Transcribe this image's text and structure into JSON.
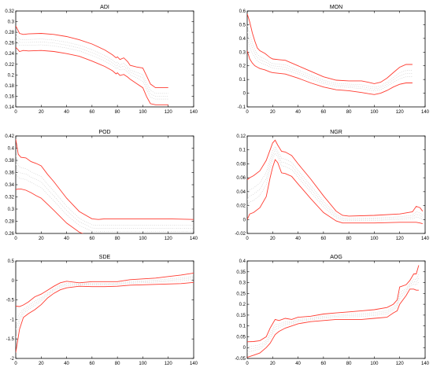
{
  "chart_data": [
    {
      "type": "line",
      "title": "ADI",
      "xlim": [
        0,
        140
      ],
      "ylim": [
        0.14,
        0.32
      ],
      "xticks": [
        0,
        20,
        40,
        60,
        80,
        100,
        120,
        140
      ],
      "yticks": [
        0.14,
        0.16,
        0.18,
        0.2,
        0.22,
        0.24,
        0.26,
        0.28,
        0.3,
        0.32
      ],
      "ytick_labels": [
        "0.14",
        "0.16",
        "0.18",
        "0.2",
        "0.22",
        "0.24",
        "0.26",
        "0.28",
        "0.3",
        "0.32"
      ],
      "xtick_labels": [
        "0",
        "20",
        "40",
        "60",
        "80",
        "100",
        "120",
        "140"
      ],
      "series": [
        {
          "role": "upper",
          "x": [
            0,
            3,
            6,
            10,
            20,
            30,
            40,
            50,
            60,
            70,
            76,
            79,
            80,
            82,
            85,
            88,
            90,
            95,
            100,
            103,
            106,
            110,
            115,
            120
          ],
          "y": [
            0.292,
            0.278,
            0.276,
            0.277,
            0.278,
            0.276,
            0.272,
            0.266,
            0.258,
            0.247,
            0.238,
            0.232,
            0.234,
            0.229,
            0.232,
            0.225,
            0.218,
            0.215,
            0.213,
            0.198,
            0.183,
            0.176,
            0.176,
            0.176
          ]
        },
        {
          "role": "lower",
          "x": [
            0,
            3,
            6,
            10,
            20,
            30,
            40,
            50,
            60,
            70,
            76,
            79,
            80,
            82,
            85,
            88,
            90,
            95,
            100,
            103,
            106,
            110,
            115,
            120
          ],
          "y": [
            0.252,
            0.244,
            0.246,
            0.245,
            0.246,
            0.244,
            0.24,
            0.235,
            0.226,
            0.216,
            0.208,
            0.202,
            0.204,
            0.199,
            0.201,
            0.196,
            0.192,
            0.184,
            0.176,
            0.159,
            0.146,
            0.144,
            0.144,
            0.144
          ]
        }
      ]
    },
    {
      "type": "line",
      "title": "MON",
      "xlim": [
        0,
        140
      ],
      "ylim": [
        -0.1,
        0.6
      ],
      "xticks": [
        0,
        20,
        40,
        60,
        80,
        100,
        120,
        140
      ],
      "yticks": [
        -0.1,
        0,
        0.1,
        0.2,
        0.3,
        0.4,
        0.5,
        0.6
      ],
      "ytick_labels": [
        "-0.1",
        "0",
        "0.1",
        "0.2",
        "0.3",
        "0.4",
        "0.5",
        "0.6"
      ],
      "xtick_labels": [
        "0",
        "20",
        "40",
        "60",
        "80",
        "100",
        "120",
        "140"
      ],
      "series": [
        {
          "role": "upper",
          "x": [
            0,
            2,
            4,
            6,
            8,
            10,
            14,
            18,
            20,
            25,
            30,
            40,
            50,
            60,
            70,
            80,
            90,
            95,
            100,
            105,
            110,
            115,
            120,
            125,
            130
          ],
          "y": [
            0.58,
            0.52,
            0.44,
            0.38,
            0.33,
            0.31,
            0.29,
            0.26,
            0.25,
            0.245,
            0.24,
            0.2,
            0.16,
            0.12,
            0.095,
            0.09,
            0.09,
            0.08,
            0.07,
            0.08,
            0.11,
            0.15,
            0.19,
            0.21,
            0.21
          ]
        },
        {
          "role": "lower",
          "x": [
            0,
            2,
            4,
            6,
            8,
            10,
            14,
            18,
            20,
            25,
            30,
            40,
            50,
            60,
            70,
            80,
            90,
            95,
            100,
            105,
            110,
            115,
            120,
            125,
            130
          ],
          "y": [
            0.31,
            0.25,
            0.22,
            0.2,
            0.19,
            0.18,
            0.17,
            0.155,
            0.15,
            0.145,
            0.14,
            0.11,
            0.075,
            0.045,
            0.025,
            0.018,
            0.005,
            -0.003,
            -0.01,
            0.0,
            0.02,
            0.045,
            0.065,
            0.075,
            0.075
          ]
        }
      ]
    },
    {
      "type": "line",
      "title": "POD",
      "xlim": [
        0,
        140
      ],
      "ylim": [
        0.26,
        0.42
      ],
      "xticks": [
        0,
        20,
        40,
        60,
        80,
        100,
        120,
        140
      ],
      "yticks": [
        0.26,
        0.28,
        0.3,
        0.32,
        0.34,
        0.36,
        0.38,
        0.4,
        0.42
      ],
      "ytick_labels": [
        "0.26",
        "0.28",
        "0.3",
        "0.32",
        "0.34",
        "0.36",
        "0.38",
        "0.4",
        "0.42"
      ],
      "xtick_labels": [
        "0",
        "20",
        "40",
        "60",
        "80",
        "100",
        "120",
        "140"
      ],
      "series": [
        {
          "role": "upper",
          "x": [
            0,
            2,
            4,
            8,
            12,
            16,
            20,
            25,
            30,
            40,
            50,
            60,
            65,
            70,
            80,
            100,
            120,
            140
          ],
          "y": [
            0.415,
            0.39,
            0.385,
            0.384,
            0.378,
            0.375,
            0.371,
            0.357,
            0.345,
            0.318,
            0.296,
            0.284,
            0.283,
            0.284,
            0.284,
            0.284,
            0.284,
            0.283
          ]
        },
        {
          "role": "lower",
          "x": [
            0,
            2,
            4,
            8,
            12,
            16,
            20,
            25,
            30,
            40,
            50,
            60,
            65,
            70,
            80,
            100,
            120,
            140
          ],
          "y": [
            0.332,
            0.333,
            0.333,
            0.331,
            0.327,
            0.322,
            0.318,
            0.308,
            0.298,
            0.277,
            0.262,
            0.254,
            0.253,
            0.253,
            0.253,
            0.253,
            0.253,
            0.253
          ]
        }
      ]
    },
    {
      "type": "line",
      "title": "NGR",
      "xlim": [
        0,
        140
      ],
      "ylim": [
        -0.02,
        0.12
      ],
      "xticks": [
        0,
        20,
        40,
        60,
        80,
        100,
        120,
        140
      ],
      "yticks": [
        -0.02,
        0,
        0.02,
        0.04,
        0.06,
        0.08,
        0.1,
        0.12
      ],
      "ytick_labels": [
        "-0.02",
        "0",
        "0.02",
        "0.04",
        "0.06",
        "0.08",
        "0.1",
        "0.12"
      ],
      "xtick_labels": [
        "0",
        "20",
        "40",
        "60",
        "80",
        "100",
        "120",
        "140"
      ],
      "series": [
        {
          "role": "upper",
          "x": [
            0,
            2,
            5,
            10,
            15,
            18,
            20,
            22,
            24,
            27,
            30,
            35,
            40,
            50,
            60,
            70,
            75,
            80,
            100,
            120,
            130,
            133,
            136,
            138
          ],
          "y": [
            0.057,
            0.06,
            0.063,
            0.07,
            0.085,
            0.1,
            0.11,
            0.114,
            0.107,
            0.098,
            0.097,
            0.092,
            0.08,
            0.058,
            0.034,
            0.012,
            0.006,
            0.005,
            0.006,
            0.008,
            0.011,
            0.019,
            0.017,
            0.012
          ]
        },
        {
          "role": "lower",
          "x": [
            0,
            2,
            5,
            10,
            15,
            18,
            20,
            22,
            24,
            27,
            30,
            35,
            40,
            50,
            60,
            70,
            75,
            80,
            100,
            120,
            130,
            133,
            136,
            138
          ],
          "y": [
            0.0,
            0.008,
            0.01,
            0.017,
            0.033,
            0.06,
            0.075,
            0.086,
            0.082,
            0.067,
            0.066,
            0.062,
            0.051,
            0.03,
            0.01,
            -0.002,
            -0.005,
            -0.005,
            -0.005,
            -0.004,
            -0.004,
            -0.004,
            -0.005,
            -0.006
          ]
        }
      ]
    },
    {
      "type": "line",
      "title": "SDE",
      "xlim": [
        0,
        140
      ],
      "ylim": [
        -2,
        0.5
      ],
      "xticks": [
        0,
        20,
        40,
        60,
        80,
        100,
        120,
        140
      ],
      "yticks": [
        -2,
        -1.5,
        -1,
        -0.5,
        0,
        0.5
      ],
      "ytick_labels": [
        "-2",
        "-1.5",
        "-1",
        "-0.5",
        "0",
        "0.5"
      ],
      "xtick_labels": [
        "0",
        "20",
        "40",
        "60",
        "80",
        "100",
        "120",
        "140"
      ],
      "series": [
        {
          "role": "upper",
          "x": [
            0,
            3,
            6,
            10,
            15,
            20,
            25,
            30,
            35,
            40,
            45,
            50,
            60,
            70,
            80,
            90,
            100,
            110,
            120,
            130,
            140
          ],
          "y": [
            -0.66,
            -0.67,
            -0.63,
            -0.55,
            -0.42,
            -0.35,
            -0.25,
            -0.15,
            -0.06,
            -0.02,
            -0.04,
            -0.06,
            -0.03,
            -0.03,
            -0.03,
            0.02,
            0.04,
            0.06,
            0.1,
            0.14,
            0.19
          ]
        },
        {
          "role": "lower",
          "x": [
            0,
            3,
            6,
            10,
            15,
            20,
            25,
            30,
            35,
            40,
            45,
            50,
            60,
            70,
            80,
            90,
            100,
            110,
            120,
            130,
            140
          ],
          "y": [
            -1.85,
            -1.25,
            -0.95,
            -0.85,
            -0.75,
            -0.62,
            -0.45,
            -0.33,
            -0.24,
            -0.19,
            -0.17,
            -0.15,
            -0.16,
            -0.16,
            -0.15,
            -0.12,
            -0.11,
            -0.1,
            -0.09,
            -0.08,
            -0.05
          ]
        }
      ]
    },
    {
      "type": "line",
      "title": "AOG",
      "xlim": [
        0,
        140
      ],
      "ylim": [
        -0.05,
        0.4
      ],
      "xticks": [
        0,
        20,
        40,
        60,
        80,
        100,
        120,
        140
      ],
      "yticks": [
        -0.05,
        0,
        0.05,
        0.1,
        0.15,
        0.2,
        0.25,
        0.3,
        0.35,
        0.4
      ],
      "ytick_labels": [
        "-0.05",
        "0",
        "0.05",
        "0.1",
        "0.15",
        "0.2",
        "0.25",
        "0.3",
        "0.35",
        "0.4"
      ],
      "xtick_labels": [
        "0",
        "20",
        "40",
        "60",
        "80",
        "100",
        "120",
        "140"
      ],
      "series": [
        {
          "role": "upper",
          "x": [
            0,
            5,
            10,
            15,
            18,
            20,
            22,
            25,
            30,
            35,
            40,
            50,
            60,
            70,
            80,
            90,
            100,
            110,
            115,
            118,
            120,
            125,
            128,
            131,
            133,
            135
          ],
          "y": [
            0.027,
            0.028,
            0.032,
            0.05,
            0.09,
            0.11,
            0.13,
            0.125,
            0.135,
            0.13,
            0.14,
            0.145,
            0.155,
            0.16,
            0.165,
            0.17,
            0.175,
            0.185,
            0.2,
            0.22,
            0.28,
            0.29,
            0.31,
            0.34,
            0.34,
            0.38
          ]
        },
        {
          "role": "lower",
          "x": [
            0,
            5,
            10,
            15,
            18,
            20,
            22,
            25,
            30,
            35,
            40,
            50,
            60,
            70,
            80,
            90,
            100,
            110,
            115,
            118,
            120,
            125,
            128,
            131,
            133,
            135
          ],
          "y": [
            -0.045,
            -0.035,
            -0.025,
            0.0,
            0.02,
            0.04,
            0.06,
            0.075,
            0.09,
            0.1,
            0.11,
            0.12,
            0.125,
            0.13,
            0.13,
            0.13,
            0.135,
            0.14,
            0.16,
            0.17,
            0.2,
            0.24,
            0.27,
            0.27,
            0.265,
            0.265
          ]
        }
      ]
    }
  ],
  "colors": {
    "band_line": "#ff3b30",
    "center_dotted": "#c9c9c9",
    "axis": "#000000",
    "background": "#ffffff"
  }
}
